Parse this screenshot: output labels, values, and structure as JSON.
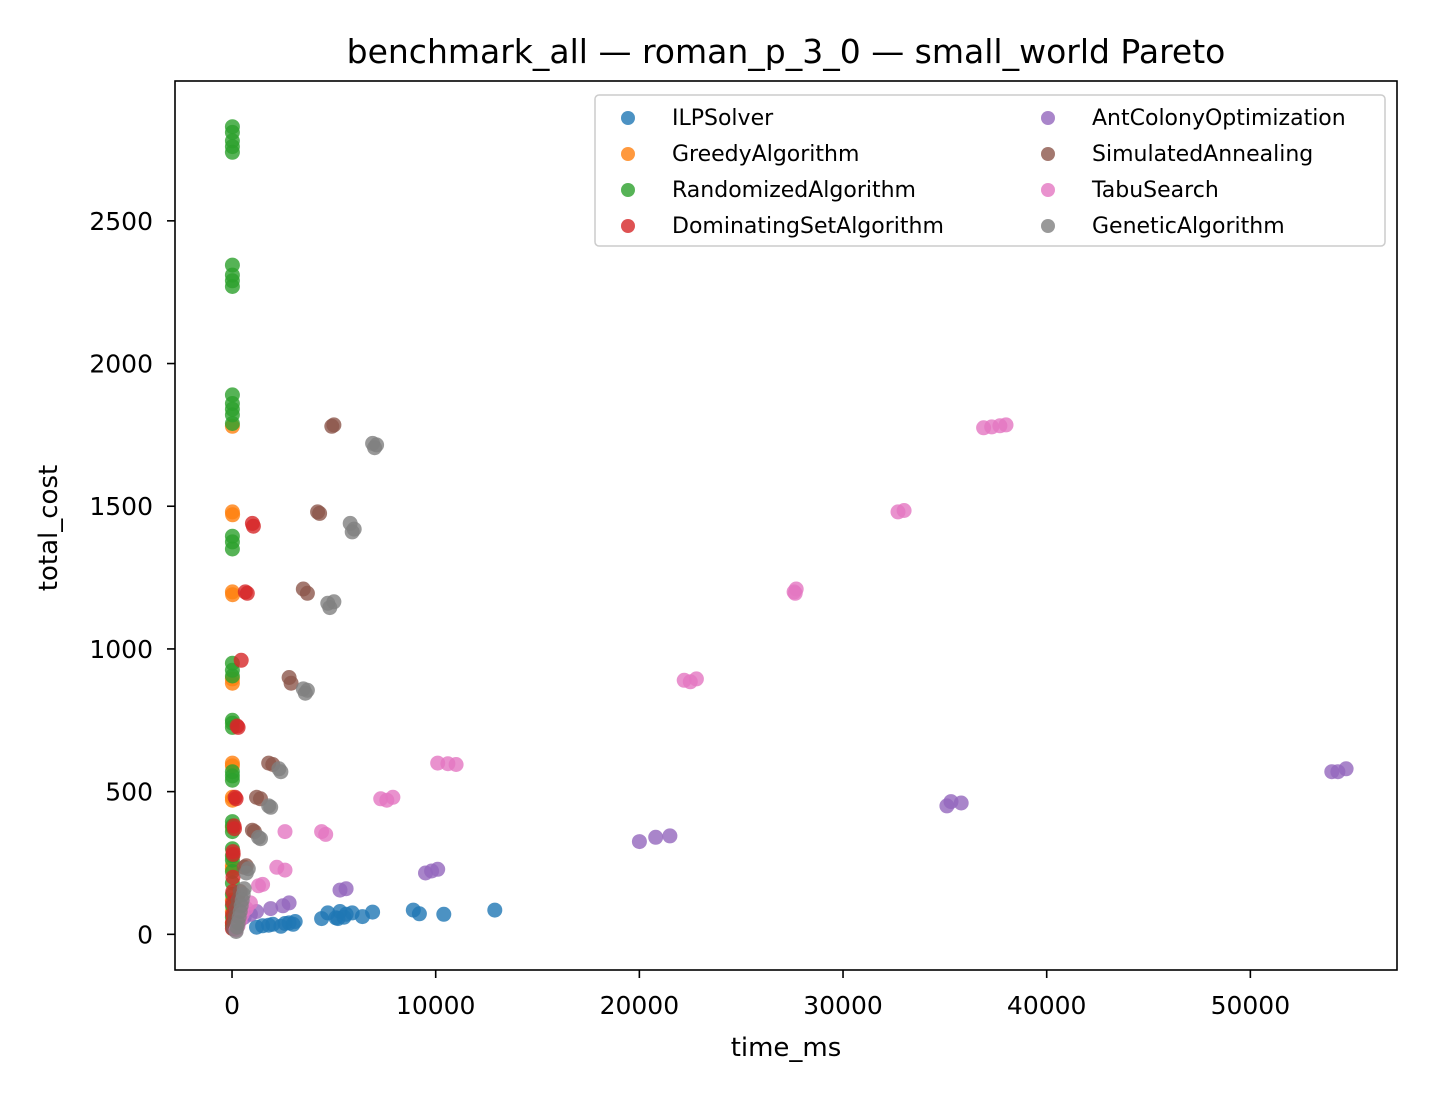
{
  "chart_data": {
    "type": "scatter",
    "title": "benchmark_all — roman_p_3_0 — small_world Pareto",
    "xlabel": "time_ms",
    "ylabel": "total_cost",
    "xlim": [
      -2800,
      57200
    ],
    "ylim": [
      -125,
      2990
    ],
    "xticks": [
      0,
      10000,
      20000,
      30000,
      40000,
      50000
    ],
    "yticks": [
      0,
      500,
      1000,
      1500,
      2000,
      2500
    ],
    "legend_position": "top-right",
    "legend_columns": 2,
    "grid": false,
    "series": [
      {
        "name": "ILPSolver",
        "color": "#1f77b4",
        "points": [
          [
            1200,
            25
          ],
          [
            1500,
            30
          ],
          [
            2000,
            35
          ],
          [
            2400,
            28
          ],
          [
            2800,
            40
          ],
          [
            3100,
            45
          ],
          [
            2600,
            38
          ],
          [
            4400,
            55
          ],
          [
            4700,
            75
          ],
          [
            5100,
            58
          ],
          [
            5300,
            80
          ],
          [
            5600,
            70
          ],
          [
            5900,
            75
          ],
          [
            5200,
            55
          ],
          [
            5500,
            60
          ],
          [
            6400,
            62
          ],
          [
            6900,
            78
          ],
          [
            8900,
            85
          ],
          [
            9200,
            72
          ],
          [
            10400,
            70
          ],
          [
            12900,
            85
          ],
          [
            3000,
            35
          ],
          [
            1800,
            32
          ]
        ]
      },
      {
        "name": "GreedyAlgorithm",
        "color": "#ff7f0e",
        "points": [
          [
            20,
            1780
          ],
          [
            20,
            1480
          ],
          [
            30,
            1470
          ],
          [
            20,
            1200
          ],
          [
            30,
            1190
          ],
          [
            20,
            895
          ],
          [
            20,
            880
          ],
          [
            20,
            600
          ],
          [
            20,
            590
          ],
          [
            20,
            480
          ],
          [
            20,
            470
          ],
          [
            20,
            375
          ],
          [
            20,
            240
          ],
          [
            20,
            230
          ],
          [
            20,
            120
          ],
          [
            20,
            80
          ],
          [
            20,
            40
          ]
        ]
      },
      {
        "name": "RandomizedAlgorithm",
        "color": "#2ca02c",
        "points": [
          [
            20,
            2830
          ],
          [
            20,
            2810
          ],
          [
            20,
            2780
          ],
          [
            20,
            2760
          ],
          [
            20,
            2740
          ],
          [
            20,
            2345
          ],
          [
            20,
            2310
          ],
          [
            20,
            2290
          ],
          [
            20,
            2270
          ],
          [
            20,
            1890
          ],
          [
            20,
            1860
          ],
          [
            20,
            1840
          ],
          [
            20,
            1820
          ],
          [
            20,
            1790
          ],
          [
            20,
            1395
          ],
          [
            20,
            1375
          ],
          [
            20,
            1350
          ],
          [
            20,
            950
          ],
          [
            20,
            925
          ],
          [
            20,
            905
          ],
          [
            20,
            750
          ],
          [
            20,
            740
          ],
          [
            20,
            725
          ],
          [
            20,
            570
          ],
          [
            20,
            555
          ],
          [
            20,
            540
          ],
          [
            20,
            395
          ],
          [
            20,
            380
          ],
          [
            20,
            360
          ],
          [
            20,
            300
          ],
          [
            20,
            275
          ],
          [
            20,
            260
          ],
          [
            20,
            220
          ],
          [
            20,
            180
          ],
          [
            20,
            140
          ],
          [
            20,
            100
          ],
          [
            20,
            60
          ],
          [
            20,
            30
          ]
        ]
      },
      {
        "name": "DominatingSetAlgorithm",
        "color": "#d62728",
        "points": [
          [
            1000,
            1440
          ],
          [
            1050,
            1430
          ],
          [
            650,
            1200
          ],
          [
            750,
            1195
          ],
          [
            450,
            960
          ],
          [
            250,
            730
          ],
          [
            300,
            725
          ],
          [
            150,
            480
          ],
          [
            200,
            475
          ],
          [
            100,
            380
          ],
          [
            120,
            370
          ],
          [
            50,
            290
          ],
          [
            60,
            280
          ],
          [
            50,
            200
          ],
          [
            40,
            150
          ],
          [
            30,
            110
          ],
          [
            30,
            70
          ],
          [
            20,
            40
          ],
          [
            20,
            20
          ]
        ]
      },
      {
        "name": "AntColonyOptimization",
        "color": "#9467bd",
        "points": [
          [
            54000,
            570
          ],
          [
            54300,
            570
          ],
          [
            54700,
            580
          ],
          [
            35100,
            450
          ],
          [
            35300,
            465
          ],
          [
            35800,
            460
          ],
          [
            20000,
            325
          ],
          [
            20800,
            340
          ],
          [
            21500,
            345
          ],
          [
            9500,
            215
          ],
          [
            9800,
            222
          ],
          [
            10100,
            228
          ],
          [
            5300,
            155
          ],
          [
            5600,
            160
          ],
          [
            2500,
            100
          ],
          [
            2800,
            110
          ],
          [
            1900,
            90
          ],
          [
            1200,
            80
          ],
          [
            900,
            70
          ],
          [
            600,
            60
          ],
          [
            400,
            50
          ],
          [
            300,
            40
          ],
          [
            200,
            30
          ],
          [
            100,
            20
          ]
        ]
      },
      {
        "name": "SimulatedAnnealing",
        "color": "#8c564b",
        "points": [
          [
            4900,
            1780
          ],
          [
            5000,
            1785
          ],
          [
            4200,
            1480
          ],
          [
            4300,
            1475
          ],
          [
            3500,
            1210
          ],
          [
            3700,
            1195
          ],
          [
            2800,
            900
          ],
          [
            2900,
            880
          ],
          [
            1800,
            600
          ],
          [
            2000,
            595
          ],
          [
            1200,
            480
          ],
          [
            1400,
            475
          ],
          [
            1000,
            365
          ],
          [
            1100,
            360
          ],
          [
            700,
            240
          ],
          [
            600,
            235
          ],
          [
            400,
            150
          ],
          [
            300,
            120
          ],
          [
            200,
            90
          ],
          [
            150,
            60
          ],
          [
            100,
            40
          ],
          [
            50,
            20
          ]
        ]
      },
      {
        "name": "TabuSearch",
        "color": "#e377c2",
        "points": [
          [
            36900,
            1775
          ],
          [
            37300,
            1778
          ],
          [
            37700,
            1782
          ],
          [
            38000,
            1785
          ],
          [
            32700,
            1480
          ],
          [
            33000,
            1485
          ],
          [
            27600,
            1200
          ],
          [
            27700,
            1210
          ],
          [
            27650,
            1195
          ],
          [
            22200,
            890
          ],
          [
            22500,
            885
          ],
          [
            22800,
            895
          ],
          [
            10100,
            600
          ],
          [
            10600,
            598
          ],
          [
            11000,
            595
          ],
          [
            7300,
            475
          ],
          [
            7600,
            470
          ],
          [
            7900,
            480
          ],
          [
            4400,
            360
          ],
          [
            4600,
            350
          ],
          [
            2600,
            360
          ],
          [
            2200,
            235
          ],
          [
            2600,
            225
          ],
          [
            1500,
            175
          ],
          [
            1300,
            170
          ],
          [
            900,
            110
          ],
          [
            700,
            90
          ],
          [
            500,
            70
          ],
          [
            400,
            50
          ],
          [
            300,
            30
          ],
          [
            200,
            15
          ]
        ]
      },
      {
        "name": "GeneticAlgorithm",
        "color": "#7f7f7f",
        "points": [
          [
            6900,
            1720
          ],
          [
            7100,
            1715
          ],
          [
            7000,
            1705
          ],
          [
            5800,
            1440
          ],
          [
            6000,
            1420
          ],
          [
            5900,
            1410
          ],
          [
            4700,
            1160
          ],
          [
            5000,
            1165
          ],
          [
            4800,
            1145
          ],
          [
            3500,
            860
          ],
          [
            3700,
            855
          ],
          [
            3600,
            845
          ],
          [
            2300,
            580
          ],
          [
            2400,
            570
          ],
          [
            1800,
            450
          ],
          [
            1900,
            445
          ],
          [
            1300,
            340
          ],
          [
            1400,
            335
          ],
          [
            800,
            230
          ],
          [
            700,
            215
          ],
          [
            600,
            160
          ],
          [
            550,
            140
          ],
          [
            500,
            120
          ],
          [
            450,
            100
          ],
          [
            400,
            80
          ],
          [
            350,
            60
          ],
          [
            300,
            40
          ],
          [
            250,
            25
          ],
          [
            200,
            10
          ]
        ]
      }
    ]
  }
}
